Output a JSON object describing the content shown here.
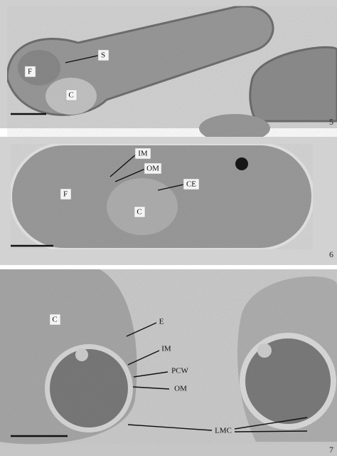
{
  "panels": [
    {
      "number": "5",
      "labels": [
        "S",
        "F",
        "C"
      ]
    },
    {
      "number": "6",
      "labels": [
        "IM",
        "OM",
        "CE",
        "F",
        "C"
      ]
    },
    {
      "number": "7",
      "labels": [
        "C",
        "E",
        "IM",
        "PCW",
        "OM",
        "LMC"
      ]
    }
  ]
}
